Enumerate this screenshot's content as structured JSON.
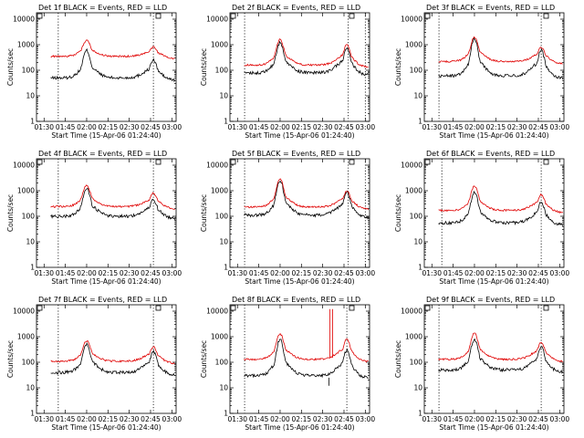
{
  "chart_data": [
    {
      "type": "line",
      "title": "Det 1f BLACK = Events, RED = LLD",
      "xlabel": "Start Time (15-Apr-06 01:24:40)",
      "ylabel": "Counts/sec",
      "x_ticks": [
        "01:30",
        "01:45",
        "02:00",
        "02:15",
        "02:30",
        "02:45",
        "03:00"
      ],
      "y_ticks": [
        "1",
        "10",
        "100",
        "1000",
        "10000"
      ],
      "series": [
        {
          "name": "BLACK = Events",
          "base": 50,
          "peak1": 600,
          "peak2": 250
        },
        {
          "name": "RED = LLD",
          "base": 350,
          "peak1": 1500,
          "peak2": 800
        }
      ],
      "vlines": [
        "01:40",
        "02:47"
      ]
    },
    {
      "type": "line",
      "title": "Det 2f BLACK = Events, RED = LLD",
      "xlabel": "Start Time (15-Apr-06 01:24:40)",
      "ylabel": "Counts/sec",
      "x_ticks": [
        "01:30",
        "01:45",
        "02:00",
        "02:15",
        "02:30",
        "02:45",
        "03:00"
      ],
      "y_ticks": [
        "1",
        "10",
        "100",
        "1000",
        "10000"
      ],
      "series": [
        {
          "name": "BLACK = Events",
          "base": 80,
          "peak1": 1200,
          "peak2": 700
        },
        {
          "name": "RED = LLD",
          "base": 160,
          "peak1": 1600,
          "peak2": 1000
        }
      ],
      "vlines": [
        "01:35",
        "02:48",
        "03:00"
      ]
    },
    {
      "type": "line",
      "title": "Det 3f BLACK = Events, RED = LLD",
      "xlabel": "Start Time (15-Apr-06 01:24:40)",
      "ylabel": "Counts/sec",
      "x_ticks": [
        "01:30",
        "01:45",
        "02:00",
        "02:15",
        "02:30",
        "02:45",
        "03:00"
      ],
      "y_ticks": [
        "1",
        "10",
        "100",
        "1000",
        "10000"
      ],
      "series": [
        {
          "name": "BLACK = Events",
          "base": 60,
          "peak1": 1800,
          "peak2": 600
        },
        {
          "name": "RED = LLD",
          "base": 220,
          "peak1": 2000,
          "peak2": 800
        }
      ],
      "vlines": [
        "01:35",
        "02:47"
      ]
    },
    {
      "type": "line",
      "title": "Det 4f BLACK = Events, RED = LLD",
      "xlabel": "Start Time (15-Apr-06 01:24:40)",
      "ylabel": "Counts/sec",
      "x_ticks": [
        "01:30",
        "01:45",
        "02:00",
        "02:15",
        "02:30",
        "02:45",
        "03:00"
      ],
      "y_ticks": [
        "1",
        "10",
        "100",
        "1000",
        "10000"
      ],
      "series": [
        {
          "name": "BLACK = Events",
          "base": 100,
          "peak1": 1200,
          "peak2": 450
        },
        {
          "name": "RED = LLD",
          "base": 240,
          "peak1": 1600,
          "peak2": 800
        }
      ],
      "vlines": [
        "01:40",
        "02:47"
      ]
    },
    {
      "type": "line",
      "title": "Det 5f BLACK = Events, RED = LLD",
      "xlabel": "Start Time (15-Apr-06 01:24:40)",
      "ylabel": "Counts/sec",
      "x_ticks": [
        "01:30",
        "01:45",
        "02:00",
        "02:15",
        "02:30",
        "02:45",
        "03:00"
      ],
      "y_ticks": [
        "1",
        "10",
        "100",
        "1000",
        "10000"
      ],
      "series": [
        {
          "name": "BLACK = Events",
          "base": 110,
          "peak1": 2500,
          "peak2": 900
        },
        {
          "name": "RED = LLD",
          "base": 230,
          "peak1": 2800,
          "peak2": 1000
        }
      ],
      "vlines": [
        "01:35",
        "02:48",
        "03:00"
      ]
    },
    {
      "type": "line",
      "title": "Det 6f BLACK = Events, RED = LLD",
      "xlabel": "Start Time (15-Apr-06 01:24:40)",
      "ylabel": "Counts/sec",
      "x_ticks": [
        "01:30",
        "01:45",
        "02:00",
        "02:15",
        "02:30",
        "02:45",
        "03:00"
      ],
      "y_ticks": [
        "1",
        "10",
        "100",
        "1000",
        "10000"
      ],
      "series": [
        {
          "name": "BLACK = Events",
          "base": 55,
          "peak1": 900,
          "peak2": 350
        },
        {
          "name": "RED = LLD",
          "base": 170,
          "peak1": 1500,
          "peak2": 700
        }
      ],
      "vlines": [
        "01:37",
        "02:47"
      ]
    },
    {
      "type": "line",
      "title": "Det 7f BLACK = Events, RED = LLD",
      "xlabel": "Start Time (15-Apr-06 01:24:40)",
      "ylabel": "Counts/sec",
      "x_ticks": [
        "01:30",
        "01:45",
        "02:00",
        "02:15",
        "02:30",
        "02:45",
        "03:00"
      ],
      "y_ticks": [
        "1",
        "10",
        "100",
        "1000",
        "10000"
      ],
      "series": [
        {
          "name": "BLACK = Events",
          "base": 40,
          "peak1": 500,
          "peak2": 250
        },
        {
          "name": "RED = LLD",
          "base": 110,
          "peak1": 700,
          "peak2": 400
        }
      ],
      "vlines": [
        "01:40",
        "02:47"
      ]
    },
    {
      "type": "line",
      "title": "Det 8f BLACK = Events, RED = LLD",
      "xlabel": "Start Time (15-Apr-06 01:24:40)",
      "ylabel": "Counts/sec",
      "x_ticks": [
        "01:30",
        "01:45",
        "02:00",
        "02:15",
        "02:30",
        "02:45",
        "03:00"
      ],
      "y_ticks": [
        "1",
        "10",
        "100",
        "1000",
        "10000"
      ],
      "series": [
        {
          "name": "BLACK = Events",
          "base": 30,
          "peak1": 800,
          "peak2": 300
        },
        {
          "name": "RED = LLD",
          "base": 130,
          "peak1": 1300,
          "peak2": 800
        }
      ],
      "vlines": [
        "01:35",
        "02:47"
      ],
      "spike": "02:35"
    },
    {
      "type": "line",
      "title": "Det 9f BLACK = Events, RED = LLD",
      "xlabel": "Start Time (15-Apr-06 01:24:40)",
      "ylabel": "Counts/sec",
      "x_ticks": [
        "01:30",
        "01:45",
        "02:00",
        "02:15",
        "02:30",
        "02:45",
        "03:00"
      ],
      "y_ticks": [
        "1",
        "10",
        "100",
        "1000",
        "10000"
      ],
      "series": [
        {
          "name": "BLACK = Events",
          "base": 50,
          "peak1": 800,
          "peak2": 400
        },
        {
          "name": "RED = LLD",
          "base": 130,
          "peak1": 1400,
          "peak2": 600
        }
      ],
      "vlines": [
        "01:35",
        "02:47"
      ]
    }
  ]
}
